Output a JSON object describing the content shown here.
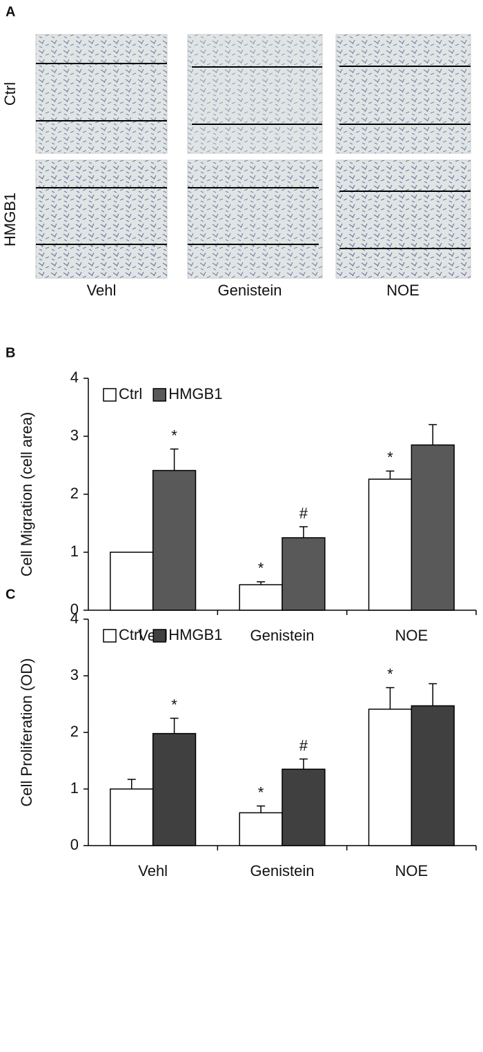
{
  "panel_a": {
    "label": "A",
    "rows": [
      "Ctrl",
      "HMGB1"
    ],
    "columns": [
      "Vehl",
      "Genistein",
      "NOE"
    ]
  },
  "chart_data": [
    {
      "type": "bar",
      "panel_label": "B",
      "ylabel": "Cell Migration (cell area)",
      "categories": [
        "Vehl",
        "Genistein",
        "NOE"
      ],
      "series": [
        {
          "name": "Ctrl",
          "color": "#ffffff",
          "values": [
            1.0,
            0.44,
            2.26
          ],
          "errors": [
            null,
            0.05,
            0.14
          ],
          "annotations": [
            null,
            "*",
            "*"
          ]
        },
        {
          "name": "HMGB1",
          "color": "#595959",
          "values": [
            2.41,
            1.25,
            2.85
          ],
          "errors": [
            0.37,
            0.19,
            0.35
          ],
          "annotations": [
            "*",
            "#",
            null
          ]
        }
      ],
      "ylim": [
        0,
        4
      ],
      "yticks": [
        0,
        1,
        2,
        3,
        4
      ],
      "grid": false,
      "legend": "top-left"
    },
    {
      "type": "bar",
      "panel_label": "C",
      "ylabel": "Cell Proliferation (OD)",
      "categories": [
        "Vehl",
        "Genistein",
        "NOE"
      ],
      "series": [
        {
          "name": "Ctrl",
          "color": "#ffffff",
          "values": [
            1.0,
            0.58,
            2.41
          ],
          "errors": [
            0.17,
            0.12,
            0.38
          ],
          "annotations": [
            null,
            "*",
            "*"
          ]
        },
        {
          "name": "HMGB1",
          "color": "#404040",
          "values": [
            1.98,
            1.35,
            2.47
          ],
          "errors": [
            0.27,
            0.18,
            0.39
          ],
          "annotations": [
            "*",
            "#",
            null
          ]
        }
      ],
      "ylim": [
        0,
        4
      ],
      "yticks": [
        0,
        1,
        2,
        3,
        4
      ],
      "grid": false,
      "legend": "top-left"
    }
  ]
}
